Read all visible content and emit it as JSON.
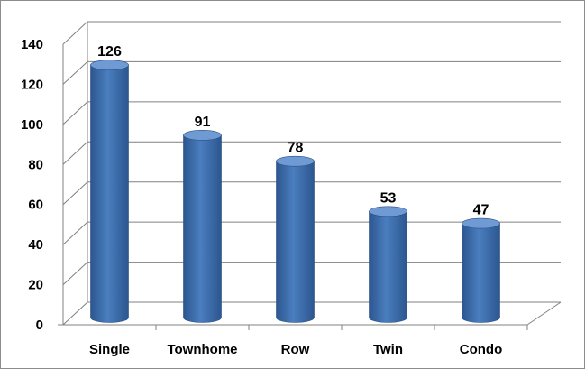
{
  "chart_data": {
    "type": "bar",
    "categories": [
      "Single",
      "Townhome",
      "Row",
      "Twin",
      "Condo"
    ],
    "values": [
      126,
      91,
      78,
      53,
      47
    ],
    "title": "",
    "xlabel": "",
    "ylabel": "",
    "ylim": [
      0,
      140
    ],
    "yticks": [
      0,
      20,
      40,
      60,
      80,
      100,
      120,
      140
    ],
    "data_labels": [
      "126",
      "91",
      "78",
      "53",
      "47"
    ],
    "grid": true,
    "legend": "none",
    "style": "3d-cylinder",
    "colors": {
      "bar": "#4a7ebf",
      "bar_dark": "#2c568f",
      "bar_top": "#6f9ad3",
      "grid": "#808080"
    }
  }
}
